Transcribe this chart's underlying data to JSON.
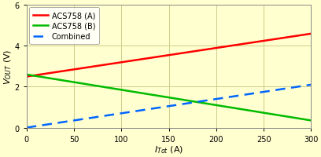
{
  "xlim": [
    0,
    300
  ],
  "ylim": [
    0,
    6
  ],
  "xticks": [
    0,
    50,
    100,
    150,
    200,
    250,
    300
  ],
  "yticks": [
    0,
    2,
    4,
    6
  ],
  "background_color": "#ffffd0",
  "grid_color": "#cccc88",
  "line_A": {
    "x": [
      0,
      300
    ],
    "y": [
      2.5,
      4.6
    ],
    "color": "#ff0000",
    "linewidth": 1.8,
    "label": "ACS758 (A)"
  },
  "line_B": {
    "x": [
      0,
      300
    ],
    "y": [
      2.6,
      0.35
    ],
    "color": "#00bb00",
    "linewidth": 1.8,
    "label": "ACS758 (B)"
  },
  "line_C": {
    "x": [
      0,
      300
    ],
    "y": [
      0.0,
      2.1
    ],
    "color": "#0066ff",
    "linewidth": 1.8,
    "linestyle": "--",
    "label": "Combined"
  },
  "legend_fontsize": 7,
  "tick_fontsize": 7,
  "label_fontsize": 8
}
